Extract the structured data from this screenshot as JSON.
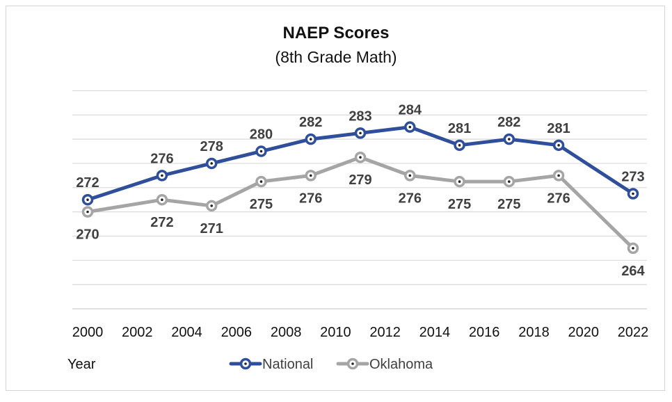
{
  "chart_data": {
    "type": "line",
    "title": "NAEP Scores",
    "subtitle": "(8th Grade Math)",
    "xlabel": "Year",
    "ylabel": "",
    "xlim": [
      2000,
      2022
    ],
    "ylim": [
      254,
      292
    ],
    "x_ticks": [
      2000,
      2002,
      2004,
      2006,
      2008,
      2010,
      2012,
      2014,
      2016,
      2018,
      2020,
      2022
    ],
    "grid": true,
    "legend_position": "bottom",
    "series": [
      {
        "name": "National",
        "color": "#2f4f9b",
        "x": [
          2000,
          2003,
          2005,
          2007,
          2009,
          2011,
          2013,
          2015,
          2017,
          2019,
          2022
        ],
        "values": [
          272,
          276,
          278,
          280,
          282,
          283,
          284,
          281,
          282,
          281,
          273
        ],
        "label_position": "above"
      },
      {
        "name": "Oklahoma",
        "color": "#a5a5a5",
        "x": [
          2000,
          2003,
          2005,
          2007,
          2009,
          2011,
          2013,
          2015,
          2017,
          2019,
          2022
        ],
        "values": [
          270,
          272,
          271,
          275,
          276,
          279,
          276,
          275,
          275,
          276,
          264
        ],
        "label_position": "below"
      }
    ]
  }
}
